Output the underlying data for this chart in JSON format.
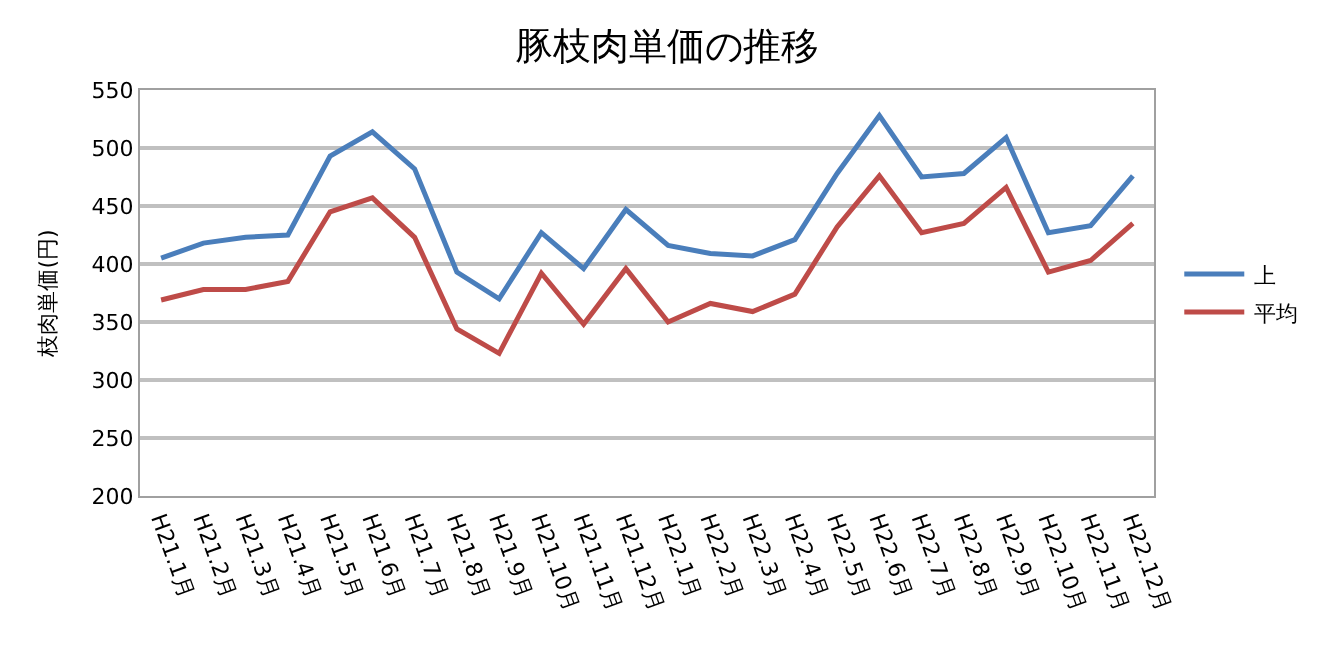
{
  "chart_data": {
    "type": "line",
    "title": "豚枝肉単価の推移",
    "ylabel": "枝肉単価(円)",
    "categories": [
      "H21.1月",
      "H21.2月",
      "H21.3月",
      "H21.4月",
      "H21.5月",
      "H21.6月",
      "H21.7月",
      "H21.8月",
      "H21.9月",
      "H21.10月",
      "H21.11月",
      "H21.12月",
      "H22.1月",
      "H22.2月",
      "H22.3月",
      "H22.4月",
      "H22.5月",
      "H22.6月",
      "H22.7月",
      "H22.8月",
      "H22.9月",
      "H22.10月",
      "H22.11月",
      "H22.12月"
    ],
    "series": [
      {
        "name": "上",
        "color": "#4a7ebb",
        "values": [
          405,
          418,
          423,
          425,
          493,
          514,
          482,
          393,
          370,
          427,
          396,
          447,
          416,
          409,
          407,
          421,
          478,
          528,
          475,
          478,
          509,
          427,
          433,
          476
        ]
      },
      {
        "name": "平均",
        "color": "#be4b48",
        "values": [
          369,
          378,
          378,
          385,
          445,
          457,
          423,
          344,
          323,
          392,
          348,
          396,
          350,
          366,
          359,
          374,
          432,
          476,
          427,
          435,
          466,
          393,
          403,
          435
        ]
      }
    ],
    "ylim": [
      200,
      550
    ],
    "yticks": [
      200,
      250,
      300,
      350,
      400,
      450,
      500,
      550
    ],
    "grid": "y",
    "legend": "right",
    "marker": "none",
    "line_style": "solid"
  }
}
